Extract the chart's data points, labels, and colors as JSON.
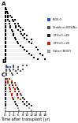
{
  "panel_labels": [
    "A",
    "B",
    "C"
  ],
  "xlabel": "Time after transplant (yr)",
  "background": "#ffffff",
  "legend_entries": [
    {
      "label": "BOS 0",
      "color": "#2255cc"
    },
    {
      "label": "Stable or BOS/No",
      "color": "#555555"
    },
    {
      "label": "DTH>0->20",
      "color": "#222222"
    },
    {
      "label": "DTH>0->20",
      "color": "#cc2200"
    },
    {
      "label": "Other (BOS?)",
      "color": "#999999"
    }
  ],
  "panel_A": {
    "n_rows": 28,
    "rows": [
      {
        "y": 27,
        "dots": [
          {
            "t": 0.3,
            "c": "k"
          }
        ]
      },
      {
        "y": 26,
        "dots": [
          {
            "t": 0.3,
            "c": "k"
          },
          {
            "t": 0.8,
            "c": "k"
          }
        ]
      },
      {
        "y": 25,
        "dots": [
          {
            "t": 0.3,
            "c": "k"
          },
          {
            "t": 1.0,
            "c": "k"
          }
        ]
      },
      {
        "y": 24,
        "dots": [
          {
            "t": 0.3,
            "c": "k"
          },
          {
            "t": 1.2,
            "c": "k"
          }
        ]
      },
      {
        "y": 23,
        "dots": [
          {
            "t": 0.3,
            "c": "k"
          },
          {
            "t": 1.5,
            "c": "k"
          },
          {
            "t": 2.5,
            "c": "k"
          }
        ]
      },
      {
        "y": 22,
        "dots": [
          {
            "t": 0.3,
            "c": "k"
          },
          {
            "t": 1.5,
            "c": "k"
          },
          {
            "t": 3.0,
            "c": "k"
          }
        ]
      },
      {
        "y": 21,
        "dots": [
          {
            "t": 0.3,
            "c": "k"
          },
          {
            "t": 1.5,
            "c": "k"
          },
          {
            "t": 3.5,
            "c": "k"
          },
          {
            "t": 4.5,
            "c": "k"
          }
        ]
      },
      {
        "y": 20,
        "dots": [
          {
            "t": 0.3,
            "c": "k"
          },
          {
            "t": 2.0,
            "c": "k"
          },
          {
            "t": 4.0,
            "c": "k"
          }
        ]
      },
      {
        "y": 19,
        "dots": [
          {
            "t": 0.3,
            "c": "k"
          },
          {
            "t": 2.0,
            "c": "k"
          },
          {
            "t": 4.5,
            "c": "k"
          },
          {
            "t": 6.0,
            "c": "k"
          }
        ]
      },
      {
        "y": 18,
        "dots": [
          {
            "t": 0.3,
            "c": "k"
          },
          {
            "t": 2.5,
            "c": "k"
          },
          {
            "t": 5.0,
            "c": "k"
          },
          {
            "t": 6.5,
            "c": "k"
          }
        ]
      },
      {
        "y": 17,
        "dots": [
          {
            "t": 0.3,
            "c": "k"
          },
          {
            "t": 2.5,
            "c": "k"
          },
          {
            "t": 5.0,
            "c": "k"
          },
          {
            "t": 7.0,
            "c": "k"
          }
        ]
      },
      {
        "y": 16,
        "dots": [
          {
            "t": 0.3,
            "c": "k"
          },
          {
            "t": 3.0,
            "c": "k"
          },
          {
            "t": 6.0,
            "c": "k"
          },
          {
            "t": 8.0,
            "c": "k"
          }
        ]
      },
      {
        "y": 15,
        "dots": [
          {
            "t": 0.3,
            "c": "k"
          },
          {
            "t": 3.5,
            "c": "k"
          },
          {
            "t": 7.0,
            "c": "k"
          }
        ]
      },
      {
        "y": 14,
        "dots": [
          {
            "t": 0.3,
            "c": "k"
          },
          {
            "t": 4.0,
            "c": "k"
          },
          {
            "t": 7.5,
            "c": "k"
          },
          {
            "t": 9.0,
            "c": "k"
          }
        ]
      },
      {
        "y": 13,
        "dots": [
          {
            "t": 0.3,
            "c": "k"
          },
          {
            "t": 4.0,
            "c": "k"
          },
          {
            "t": 8.0,
            "c": "k"
          },
          {
            "t": 10.0,
            "c": "k"
          }
        ]
      },
      {
        "y": 12,
        "dots": [
          {
            "t": 0.3,
            "c": "k"
          },
          {
            "t": 4.5,
            "c": "k"
          },
          {
            "t": 9.0,
            "c": "k"
          }
        ]
      },
      {
        "y": 11,
        "dots": [
          {
            "t": 0.3,
            "c": "k"
          },
          {
            "t": 5.0,
            "c": "k"
          },
          {
            "t": 10.0,
            "c": "k"
          },
          {
            "t": 12.0,
            "c": "k"
          }
        ]
      },
      {
        "y": 10,
        "dots": [
          {
            "t": 0.3,
            "c": "k"
          },
          {
            "t": 5.5,
            "c": "k"
          },
          {
            "t": 11.0,
            "c": "k"
          }
        ]
      },
      {
        "y": 9,
        "dots": [
          {
            "t": 0.3,
            "c": "k"
          },
          {
            "t": 6.0,
            "c": "k"
          },
          {
            "t": 12.0,
            "c": "k"
          }
        ]
      },
      {
        "y": 8,
        "dots": [
          {
            "t": 0.3,
            "c": "k"
          },
          {
            "t": 7.0,
            "c": "k"
          }
        ]
      },
      {
        "y": 7,
        "dots": [
          {
            "t": 0.3,
            "c": "k"
          },
          {
            "t": 8.0,
            "c": "k"
          },
          {
            "t": 14.0,
            "c": "k"
          }
        ]
      },
      {
        "y": 6,
        "dots": [
          {
            "t": 0.3,
            "c": "k"
          },
          {
            "t": 9.0,
            "c": "k"
          },
          {
            "t": 15.0,
            "c": "k"
          }
        ]
      },
      {
        "y": 5,
        "dots": [
          {
            "t": 0.3,
            "c": "k"
          },
          {
            "t": 10.0,
            "c": "k"
          }
        ]
      },
      {
        "y": 4,
        "dots": [
          {
            "t": 0.3,
            "c": "k"
          },
          {
            "t": 11.0,
            "c": "k"
          },
          {
            "t": 16.0,
            "c": "k"
          }
        ]
      },
      {
        "y": 3,
        "dots": [
          {
            "t": 0.3,
            "c": "k"
          },
          {
            "t": 12.0,
            "c": "k"
          },
          {
            "t": 17.0,
            "c": "k"
          }
        ]
      },
      {
        "y": 2,
        "dots": [
          {
            "t": 0.3,
            "c": "k"
          },
          {
            "t": 13.0,
            "c": "k"
          }
        ]
      },
      {
        "y": 1,
        "dots": [
          {
            "t": 0.3,
            "c": "k"
          },
          {
            "t": 15.0,
            "c": "k"
          },
          {
            "t": 18.0,
            "c": "k"
          }
        ]
      },
      {
        "y": 0,
        "dots": [
          {
            "t": 0.3,
            "c": "k"
          }
        ]
      }
    ],
    "xlim": [
      0,
      18.5
    ],
    "ylim": [
      -0.5,
      27.5
    ]
  },
  "panel_B": {
    "n_rows": 6,
    "rows": [
      {
        "y": 5,
        "dots": [
          {
            "t": 0.5,
            "c": "#555555"
          },
          {
            "t": 4.0,
            "c": "#555555"
          },
          {
            "t": 8.0,
            "c": "#555555"
          },
          {
            "t": 10.0,
            "c": "#555555"
          }
        ]
      },
      {
        "y": 4,
        "dots": [
          {
            "t": 0.5,
            "c": "#555555"
          },
          {
            "t": 1.5,
            "c": "#2255cc"
          },
          {
            "t": 2.5,
            "c": "#2255cc"
          },
          {
            "t": 4.0,
            "c": "#555555"
          },
          {
            "t": 6.0,
            "c": "#555555"
          }
        ]
      },
      {
        "y": 3,
        "dots": [
          {
            "t": 0.5,
            "c": "#555555"
          },
          {
            "t": 2.0,
            "c": "#555555"
          },
          {
            "t": 4.0,
            "c": "#555555"
          },
          {
            "t": 6.0,
            "c": "#555555"
          },
          {
            "t": 8.0,
            "c": "#555555"
          }
        ]
      },
      {
        "y": 2,
        "dots": [
          {
            "t": 0.5,
            "c": "#555555"
          },
          {
            "t": 2.5,
            "c": "#555555"
          },
          {
            "t": 5.0,
            "c": "#555555"
          },
          {
            "t": 7.0,
            "c": "#555555"
          }
        ]
      },
      {
        "y": 1,
        "dots": [
          {
            "t": 0.5,
            "c": "#555555"
          },
          {
            "t": 3.0,
            "c": "#555555"
          },
          {
            "t": 5.5,
            "c": "#555555"
          }
        ]
      },
      {
        "y": 0,
        "dots": [
          {
            "t": 0.5,
            "c": "#555555"
          },
          {
            "t": 3.5,
            "c": "#555555"
          }
        ]
      }
    ],
    "xlim": [
      0,
      18.5
    ],
    "ylim": [
      -0.5,
      5.5
    ]
  },
  "panel_C": {
    "n_rows": 16,
    "rows": [
      {
        "y": 15,
        "dots": [
          {
            "t": 0.3,
            "c": "#222222"
          },
          {
            "t": 1.0,
            "c": "#cc2200"
          },
          {
            "t": 2.0,
            "c": "#cc2200"
          }
        ]
      },
      {
        "y": 14,
        "dots": [
          {
            "t": 0.3,
            "c": "#cc2200"
          },
          {
            "t": 1.5,
            "c": "#cc2200"
          },
          {
            "t": 3.0,
            "c": "#cc2200"
          }
        ]
      },
      {
        "y": 13,
        "dots": [
          {
            "t": 0.3,
            "c": "#222222"
          },
          {
            "t": 1.5,
            "c": "#cc2200"
          },
          {
            "t": 3.0,
            "c": "#222222"
          },
          {
            "t": 4.5,
            "c": "#cc2200"
          }
        ]
      },
      {
        "y": 12,
        "dots": [
          {
            "t": 0.3,
            "c": "#222222"
          },
          {
            "t": 2.0,
            "c": "#cc2200"
          },
          {
            "t": 3.5,
            "c": "#222222"
          },
          {
            "t": 5.0,
            "c": "#cc2200"
          }
        ]
      },
      {
        "y": 11,
        "dots": [
          {
            "t": 0.3,
            "c": "#222222"
          },
          {
            "t": 2.0,
            "c": "#cc2200"
          },
          {
            "t": 4.0,
            "c": "#cc2200"
          },
          {
            "t": 5.5,
            "c": "#222222"
          }
        ]
      },
      {
        "y": 10,
        "dots": [
          {
            "t": 0.3,
            "c": "#222222"
          },
          {
            "t": 2.5,
            "c": "#cc2200"
          },
          {
            "t": 4.5,
            "c": "#cc2200"
          },
          {
            "t": 6.0,
            "c": "#222222"
          }
        ]
      },
      {
        "y": 9,
        "dots": [
          {
            "t": 0.3,
            "c": "#222222"
          },
          {
            "t": 2.5,
            "c": "#cc2200"
          },
          {
            "t": 4.5,
            "c": "#cc2200"
          },
          {
            "t": 6.5,
            "c": "#cc2200"
          }
        ]
      },
      {
        "y": 8,
        "dots": [
          {
            "t": 0.3,
            "c": "#222222"
          },
          {
            "t": 3.0,
            "c": "#cc2200"
          },
          {
            "t": 5.5,
            "c": "#222222"
          },
          {
            "t": 7.0,
            "c": "#cc2200"
          }
        ]
      },
      {
        "y": 7,
        "dots": [
          {
            "t": 0.3,
            "c": "#222222"
          },
          {
            "t": 3.0,
            "c": "#cc2200"
          },
          {
            "t": 5.5,
            "c": "#cc2200"
          },
          {
            "t": 7.5,
            "c": "#2255cc"
          }
        ]
      },
      {
        "y": 6,
        "dots": [
          {
            "t": 0.3,
            "c": "#222222"
          },
          {
            "t": 3.5,
            "c": "#cc2200"
          },
          {
            "t": 6.0,
            "c": "#cc2200"
          },
          {
            "t": 8.0,
            "c": "#222222"
          }
        ]
      },
      {
        "y": 5,
        "dots": [
          {
            "t": 0.3,
            "c": "#222222"
          },
          {
            "t": 4.0,
            "c": "#222222"
          },
          {
            "t": 7.0,
            "c": "#cc2200"
          },
          {
            "t": 9.0,
            "c": "#222222"
          }
        ]
      },
      {
        "y": 4,
        "dots": [
          {
            "t": 0.3,
            "c": "#222222"
          },
          {
            "t": 4.5,
            "c": "#222222"
          },
          {
            "t": 8.0,
            "c": "#222222"
          },
          {
            "t": 10.0,
            "c": "#222222"
          }
        ]
      },
      {
        "y": 3,
        "dots": [
          {
            "t": 0.3,
            "c": "#222222"
          },
          {
            "t": 5.0,
            "c": "#222222"
          },
          {
            "t": 9.0,
            "c": "#222222"
          },
          {
            "t": 11.0,
            "c": "#222222"
          }
        ]
      },
      {
        "y": 2,
        "dots": [
          {
            "t": 0.3,
            "c": "#222222"
          },
          {
            "t": 5.5,
            "c": "#222222"
          },
          {
            "t": 10.0,
            "c": "#222222"
          },
          {
            "t": 12.0,
            "c": "#222222"
          }
        ]
      },
      {
        "y": 1,
        "dots": [
          {
            "t": 0.3,
            "c": "#999999"
          },
          {
            "t": 6.0,
            "c": "#999999"
          },
          {
            "t": 11.0,
            "c": "#999999"
          }
        ]
      },
      {
        "y": 0,
        "dots": [
          {
            "t": 0.3,
            "c": "#999999"
          },
          {
            "t": 6.5,
            "c": "#999999"
          },
          {
            "t": 12.0,
            "c": "#999999"
          }
        ]
      }
    ],
    "xlim": [
      0,
      18.5
    ],
    "ylim": [
      -0.5,
      15.5
    ]
  },
  "xticks": [
    0,
    2,
    4,
    6,
    8,
    10,
    12,
    14,
    16,
    18
  ],
  "tick_fontsize": 3.0,
  "label_fontsize": 3.5,
  "panel_label_fontsize": 5,
  "dot_size": 1.8,
  "line_color": "#cccccc",
  "line_width": 0.3
}
